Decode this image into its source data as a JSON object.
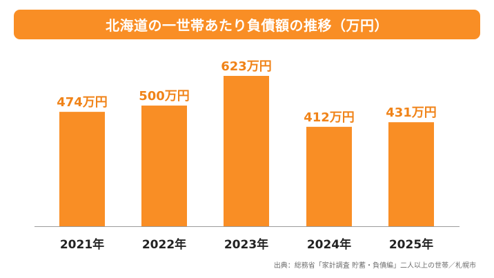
{
  "title": "北海道の一世帯あたり負債額の推移（万円）",
  "source": "出典：総務省「家計調査 貯蓄・負債編」二人以上の世帯／札幌市",
  "colors": {
    "bar": "#f98e25",
    "banner": "#f98e25",
    "value_label": "#f08318"
  },
  "chart_data": {
    "type": "bar",
    "title": "北海道の一世帯あたり負債額の推移（万円）",
    "xlabel": "",
    "ylabel": "",
    "categories": [
      "2021年",
      "2022年",
      "2023年",
      "2024年",
      "2025年"
    ],
    "values": [
      474,
      500,
      623,
      412,
      431
    ],
    "value_labels": [
      "474万円",
      "500万円",
      "623万円",
      "412万円",
      "431万円"
    ],
    "grid": false,
    "legend": "none"
  }
}
